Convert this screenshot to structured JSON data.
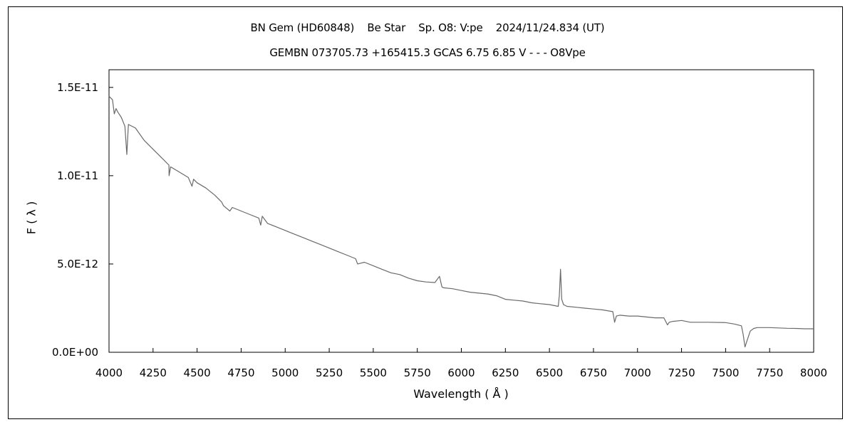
{
  "chart_data": {
    "type": "line",
    "title": "BN Gem (HD60848)    Be Star    Sp. O8: V:pe    2024/11/24.834 (UT)",
    "subtitle": "GEMBN 073705.73 +165415.3 GCAS 6.75 6.85 V - - - O8Vpe",
    "xlabel": "Wavelength ( Å )",
    "ylabel": "F ( λ )",
    "xlim": [
      4000,
      8000
    ],
    "ylim": [
      0,
      1.6e-11
    ],
    "x_ticks": [
      4000,
      4250,
      4500,
      4750,
      5000,
      5250,
      5500,
      5750,
      6000,
      6250,
      6500,
      6750,
      7000,
      7250,
      7500,
      7750,
      8000
    ],
    "x_tick_labels": [
      "4000",
      "4250",
      "4500",
      "4750",
      "5000",
      "5250",
      "5500",
      "5750",
      "6000",
      "6250",
      "6500",
      "6750",
      "7000",
      "7250",
      "7500",
      "7750",
      "8000"
    ],
    "y_ticks": [
      0,
      5e-12,
      1e-11,
      1.5e-11
    ],
    "y_tick_labels": [
      "0.0E+00",
      "5.0E-12",
      "1.0E-11",
      "1.5E-11"
    ],
    "grid": false,
    "legend": "none",
    "line_color": "#6a6a6a",
    "series": [
      {
        "x": [
          4000,
          4020,
          4030,
          4040,
          4050,
          4070,
          4090,
          4101,
          4110,
          4150,
          4200,
          4250,
          4300,
          4340,
          4341,
          4350,
          4400,
          4450,
          4471,
          4480,
          4500,
          4550,
          4600,
          4640,
          4650,
          4686,
          4700,
          4750,
          4800,
          4850,
          4861,
          4870,
          4900,
          4950,
          5000,
          5050,
          5100,
          5150,
          5200,
          5250,
          5300,
          5350,
          5400,
          5411,
          5450,
          5500,
          5550,
          5600,
          5650,
          5700,
          5750,
          5800,
          5850,
          5876,
          5890,
          5900,
          5950,
          6000,
          6050,
          6100,
          6150,
          6200,
          6250,
          6300,
          6350,
          6400,
          6450,
          6500,
          6550,
          6556,
          6563,
          6570,
          6580,
          6600,
          6650,
          6700,
          6750,
          6800,
          6860,
          6870,
          6880,
          6900,
          6950,
          7000,
          7050,
          7100,
          7150,
          7170,
          7180,
          7200,
          7250,
          7300,
          7400,
          7500,
          7550,
          7590,
          7600,
          7610,
          7620,
          7640,
          7660,
          7680,
          7700,
          7750,
          7800,
          7850,
          7900,
          7950,
          8000
        ],
        "y": [
          1.45e-11,
          1.43e-11,
          1.35e-11,
          1.38e-11,
          1.36e-11,
          1.33e-11,
          1.28e-11,
          1.12e-11,
          1.29e-11,
          1.27e-11,
          1.2e-11,
          1.15e-11,
          1.1e-11,
          1.06e-11,
          1e-11,
          1.05e-11,
          1.02e-11,
          9.9e-12,
          9.4e-12,
          9.8e-12,
          9.6e-12,
          9.3e-12,
          8.9e-12,
          8.5e-12,
          8.3e-12,
          8e-12,
          8.2e-12,
          8e-12,
          7.8e-12,
          7.6e-12,
          7.2e-12,
          7.7e-12,
          7.3e-12,
          7.1e-12,
          6.9e-12,
          6.7e-12,
          6.5e-12,
          6.3e-12,
          6.1e-12,
          5.9e-12,
          5.7e-12,
          5.5e-12,
          5.3e-12,
          5e-12,
          5.1e-12,
          4.9e-12,
          4.7e-12,
          4.5e-12,
          4.4e-12,
          4.2e-12,
          4.05e-12,
          3.98e-12,
          3.95e-12,
          4.3e-12,
          3.7e-12,
          3.65e-12,
          3.6e-12,
          3.5e-12,
          3.4e-12,
          3.35e-12,
          3.3e-12,
          3.2e-12,
          3e-12,
          2.95e-12,
          2.9e-12,
          2.8e-12,
          2.75e-12,
          2.7e-12,
          2.6e-12,
          3.2e-12,
          4.7e-12,
          3e-12,
          2.7e-12,
          2.6e-12,
          2.55e-12,
          2.5e-12,
          2.45e-12,
          2.4e-12,
          2.3e-12,
          1.7e-12,
          2.05e-12,
          2.1e-12,
          2.05e-12,
          2.05e-12,
          2e-12,
          1.95e-12,
          1.95e-12,
          1.55e-12,
          1.7e-12,
          1.75e-12,
          1.8e-12,
          1.7e-12,
          1.7e-12,
          1.68e-12,
          1.6e-12,
          1.5e-12,
          1e-12,
          3e-13,
          6e-13,
          1.2e-12,
          1.35e-12,
          1.4e-12,
          1.4e-12,
          1.4e-12,
          1.38e-12,
          1.36e-12,
          1.35e-12,
          1.33e-12,
          1.33e-12
        ]
      }
    ]
  }
}
